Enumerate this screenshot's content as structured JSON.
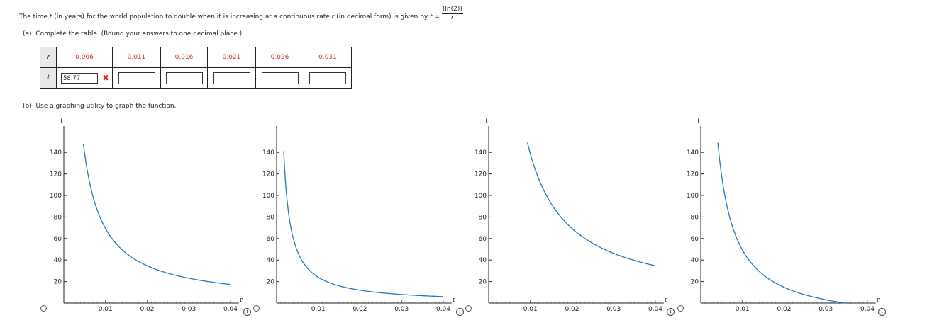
{
  "problem": {
    "prefix": "The time ",
    "t_var": "t",
    "middle": " (in years) for the world population to double when it is increasing at a continuous rate ",
    "r_var": "r",
    "suffix": " (in decimal form) is given by ",
    "eq": "t = ",
    "numerator": "(ln(2))",
    "denominator": "r",
    "end": "."
  },
  "part_a": {
    "label": "(a)",
    "text": "Complete the table. (Round your answers to one decimal place.)"
  },
  "table": {
    "r_header": "r",
    "t_header": "t",
    "r_values": [
      "0.006",
      "0.011",
      "0.016",
      "0.021",
      "0.026",
      "0.031"
    ],
    "t_values": [
      "58.77",
      "",
      "",
      "",
      "",
      ""
    ],
    "incorrect_mark": "✖"
  },
  "part_b": {
    "label": "(b)",
    "text": "Use a graphing utility to graph the function."
  },
  "graphs": [
    {
      "id": "A",
      "xlabel": "r",
      "ylabel": "t",
      "x_ticks": [
        "0.01",
        "0.02",
        "0.03",
        "0.04"
      ],
      "y_ticks": [
        "20",
        "40",
        "60",
        "80",
        "100",
        "120",
        "140"
      ],
      "xlim": [
        0,
        0.04
      ],
      "ylim": [
        0,
        150
      ],
      "function": "0.693/r",
      "info": "i"
    },
    {
      "id": "B",
      "xlabel": "r",
      "ylabel": "t",
      "x_ticks": [
        "0.01",
        "0.02",
        "0.03",
        "0.04"
      ],
      "y_ticks": [
        "20",
        "40",
        "60",
        "80",
        "100",
        "120",
        "140"
      ],
      "xlim": [
        0,
        0.04
      ],
      "ylim": [
        0,
        150
      ],
      "function": "0.24/r",
      "info": "i"
    },
    {
      "id": "C",
      "xlabel": "r",
      "ylabel": "t",
      "x_ticks": [
        "0.01",
        "0.02",
        "0.03",
        "0.04"
      ],
      "y_ticks": [
        "20",
        "40",
        "60",
        "80",
        "100",
        "120",
        "140"
      ],
      "xlim": [
        0,
        0.04
      ],
      "ylim": [
        0,
        150
      ],
      "function": "1.386/r",
      "info": "i"
    },
    {
      "id": "D",
      "xlabel": "r",
      "ylabel": "t",
      "x_ticks": [
        "0.01",
        "0.02",
        "0.03",
        "0.04"
      ],
      "y_ticks": [
        "20",
        "40",
        "60",
        "80",
        "100",
        "120",
        "140"
      ],
      "xlim": [
        0,
        0.04
      ],
      "ylim": [
        0,
        150
      ],
      "function": "0.693/r - 20",
      "info": "i"
    }
  ],
  "colors": {
    "curve": "#1f78c1",
    "r_text": "#c0392b",
    "wrong": "#d93025",
    "header_bg": "#e9e9e9"
  }
}
